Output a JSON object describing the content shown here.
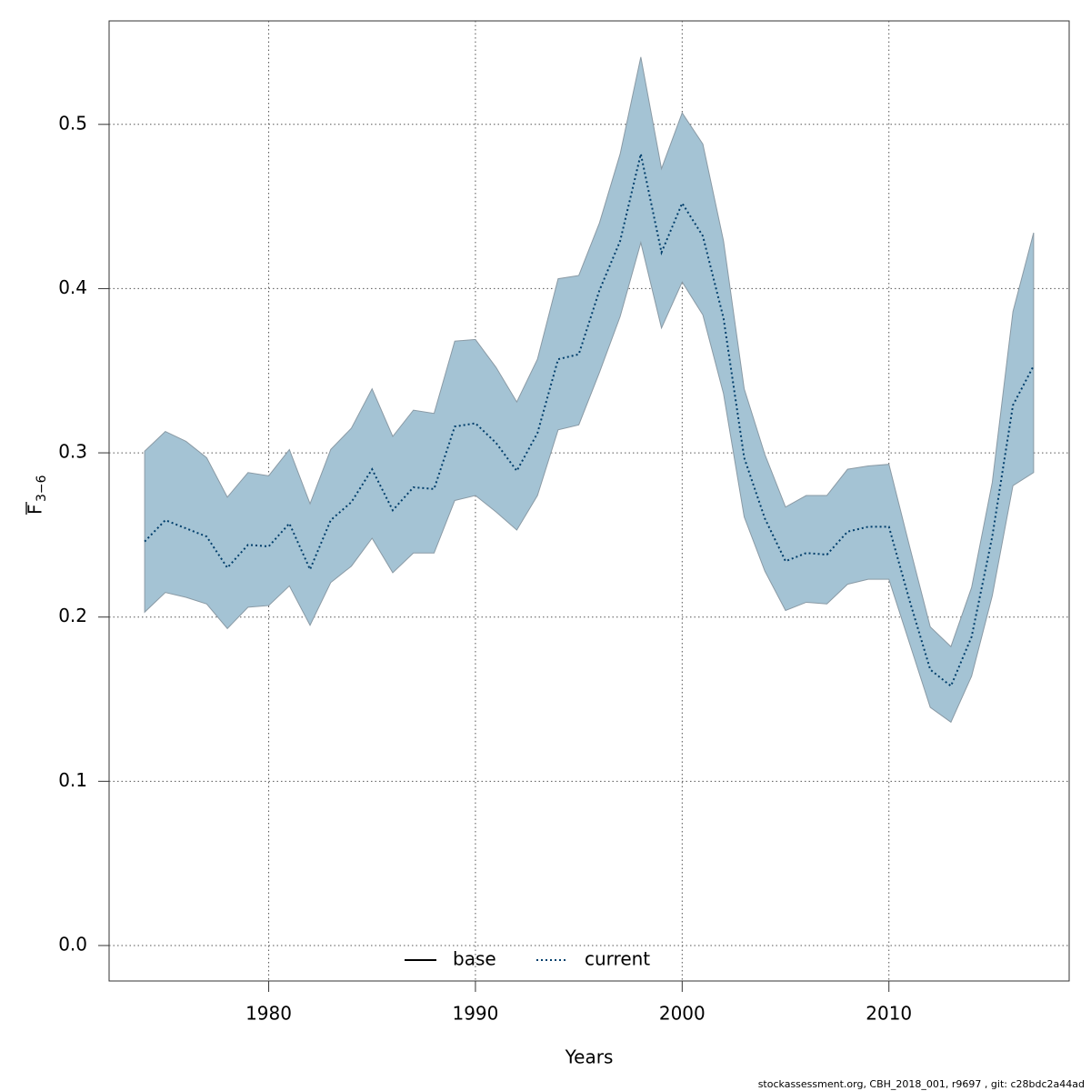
{
  "chart_data": {
    "type": "line",
    "xlabel": "Years",
    "ylabel": {
      "text": "F",
      "subscript": "3−6"
    },
    "footer": "stockassessment.org, CBH_2018_001, r9697 , git: c28bdc2a44ad",
    "x": [
      1974,
      1975,
      1976,
      1977,
      1978,
      1979,
      1980,
      1981,
      1982,
      1983,
      1984,
      1985,
      1986,
      1987,
      1988,
      1989,
      1990,
      1991,
      1992,
      1993,
      1994,
      1995,
      1996,
      1997,
      1998,
      1999,
      2000,
      2001,
      2002,
      2003,
      2004,
      2005,
      2006,
      2007,
      2008,
      2009,
      2010,
      2011,
      2012,
      2013,
      2014,
      2015,
      2016,
      2017
    ],
    "series": [
      {
        "name": "base",
        "color": "#000000",
        "dash": "solid"
      },
      {
        "name": "current",
        "color": "#003e6b",
        "dash": "dotted",
        "band_color": "#a4c3d4",
        "values": [
          0.246,
          0.259,
          0.254,
          0.249,
          0.23,
          0.244,
          0.243,
          0.257,
          0.229,
          0.259,
          0.27,
          0.29,
          0.265,
          0.279,
          0.278,
          0.316,
          0.318,
          0.306,
          0.289,
          0.312,
          0.357,
          0.36,
          0.399,
          0.429,
          0.482,
          0.422,
          0.452,
          0.432,
          0.382,
          0.297,
          0.26,
          0.234,
          0.239,
          0.238,
          0.252,
          0.255,
          0.255,
          0.21,
          0.168,
          0.158,
          0.188,
          0.249,
          0.329,
          0.353
        ],
        "upper": [
          0.301,
          0.313,
          0.307,
          0.297,
          0.273,
          0.288,
          0.286,
          0.302,
          0.269,
          0.302,
          0.315,
          0.339,
          0.31,
          0.326,
          0.324,
          0.368,
          0.369,
          0.352,
          0.331,
          0.357,
          0.406,
          0.408,
          0.44,
          0.482,
          0.541,
          0.473,
          0.507,
          0.488,
          0.429,
          0.339,
          0.299,
          0.267,
          0.274,
          0.274,
          0.29,
          0.292,
          0.293,
          0.243,
          0.194,
          0.182,
          0.218,
          0.282,
          0.386,
          0.434
        ],
        "lower": [
          0.203,
          0.215,
          0.212,
          0.208,
          0.193,
          0.206,
          0.207,
          0.219,
          0.195,
          0.221,
          0.231,
          0.248,
          0.227,
          0.239,
          0.239,
          0.271,
          0.274,
          0.264,
          0.253,
          0.274,
          0.314,
          0.317,
          0.349,
          0.383,
          0.428,
          0.376,
          0.404,
          0.384,
          0.336,
          0.261,
          0.228,
          0.204,
          0.209,
          0.208,
          0.22,
          0.223,
          0.223,
          0.184,
          0.145,
          0.136,
          0.164,
          0.213,
          0.28,
          0.288
        ]
      }
    ],
    "xlim": [
      1972.28,
      2018.72
    ],
    "xticks": [
      1980,
      1990,
      2000,
      2010
    ],
    "ylim": [
      -0.0216,
      0.563
    ],
    "yticks": [
      {
        "value": 0,
        "label": "0.0"
      },
      0.1,
      0.2,
      0.3,
      0.4,
      0.5
    ],
    "grid": true,
    "legend": "bottom"
  }
}
